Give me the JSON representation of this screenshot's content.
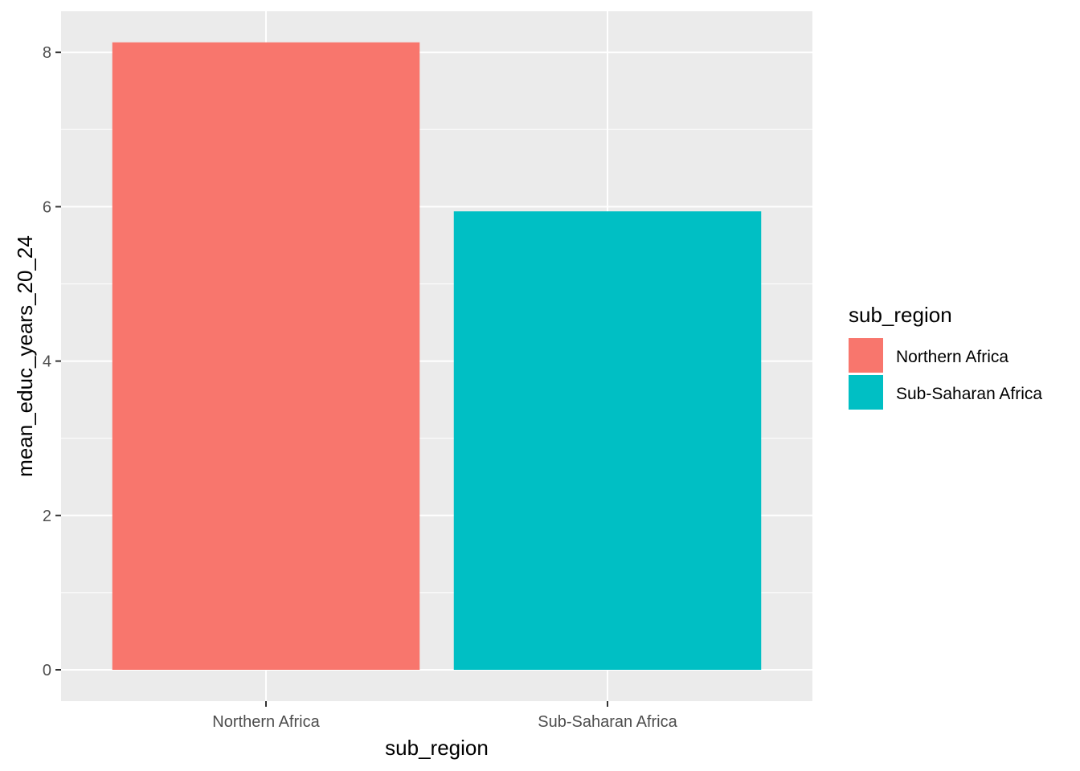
{
  "chart_data": {
    "type": "bar",
    "categories": [
      "Northern Africa",
      "Sub-Saharan Africa"
    ],
    "values": [
      8.13,
      5.94
    ],
    "colors": [
      "#F8766D",
      "#00BFC4"
    ],
    "xlabel": "sub_region",
    "ylabel": "mean_educ_years_20_24",
    "ylim": [
      0,
      8.55
    ],
    "yticks": [
      0,
      2,
      4,
      6,
      8
    ],
    "grid": true,
    "panel_background": "#EBEBEB",
    "gridline_color": "#FFFFFF",
    "legend": {
      "title": "sub_region",
      "placement": "right",
      "items": [
        "Northern Africa",
        "Sub-Saharan Africa"
      ]
    }
  }
}
